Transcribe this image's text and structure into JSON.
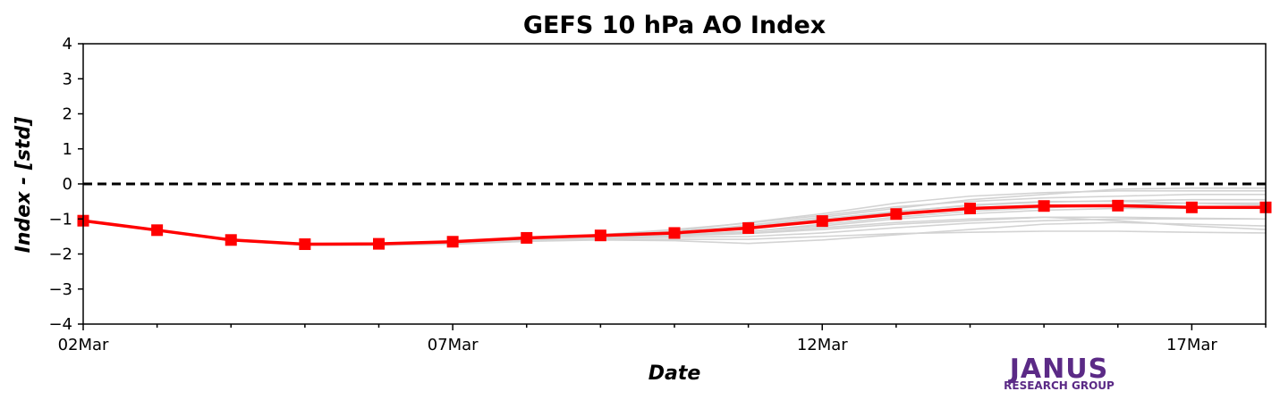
{
  "chart_data": {
    "type": "line",
    "title": "GEFS 10 hPa AO Index",
    "xlabel": "Date",
    "ylabel": "Index - [std]",
    "x_tick_labels": [
      "02Mar",
      "07Mar",
      "12Mar",
      "17Mar"
    ],
    "y_ticks": [
      -4,
      -3,
      -2,
      -1,
      0,
      1,
      2,
      3,
      4
    ],
    "ylim": [
      -4,
      4
    ],
    "xlim_days": [
      0,
      16
    ],
    "reference_line": {
      "y": 0,
      "style": "dashed",
      "color": "#000000"
    },
    "mean_series": {
      "color": "#ff0000",
      "marker": "square",
      "x_days": [
        0,
        1,
        2,
        3,
        4,
        5,
        6,
        7,
        8,
        9,
        10,
        11,
        12,
        13,
        14,
        15,
        16
      ],
      "values": [
        -1.05,
        -1.32,
        -1.6,
        -1.72,
        -1.71,
        -1.65,
        -1.54,
        -1.47,
        -1.4,
        -1.26,
        -1.06,
        -0.86,
        -0.7,
        -0.63,
        -0.62,
        -0.67,
        -0.67
      ]
    },
    "ensemble_color": "#d3d3d3",
    "ensemble_x_days": [
      0,
      1,
      2,
      3,
      4,
      5,
      6,
      7,
      8,
      9,
      10,
      11,
      12,
      13,
      14,
      15,
      16
    ],
    "ensemble_members": [
      [
        -1.05,
        -1.32,
        -1.6,
        -1.72,
        -1.71,
        -1.65,
        -1.54,
        -1.47,
        -1.35,
        -1.1,
        -0.85,
        -0.55,
        -0.35,
        -0.25,
        -0.2,
        -0.2,
        -0.2
      ],
      [
        -1.05,
        -1.32,
        -1.6,
        -1.72,
        -1.71,
        -1.65,
        -1.54,
        -1.47,
        -1.38,
        -1.18,
        -0.95,
        -0.7,
        -0.45,
        -0.3,
        -0.15,
        -0.12,
        -0.12
      ],
      [
        -1.05,
        -1.32,
        -1.6,
        -1.72,
        -1.71,
        -1.65,
        -1.54,
        -1.45,
        -1.3,
        -1.12,
        -0.9,
        -0.65,
        -0.5,
        -0.4,
        -0.35,
        -0.3,
        -0.3
      ],
      [
        -1.06,
        -1.33,
        -1.61,
        -1.73,
        -1.73,
        -1.68,
        -1.58,
        -1.52,
        -1.48,
        -1.42,
        -1.3,
        -1.15,
        -1.05,
        -0.95,
        -0.95,
        -0.98,
        -1.0
      ],
      [
        -1.06,
        -1.33,
        -1.61,
        -1.74,
        -1.74,
        -1.7,
        -1.62,
        -1.58,
        -1.58,
        -1.58,
        -1.5,
        -1.42,
        -1.38,
        -1.35,
        -1.35,
        -1.38,
        -1.4
      ],
      [
        -1.05,
        -1.32,
        -1.6,
        -1.73,
        -1.72,
        -1.66,
        -1.56,
        -1.5,
        -1.45,
        -1.35,
        -1.2,
        -1.0,
        -0.85,
        -0.75,
        -0.7,
        -0.7,
        -0.7
      ],
      [
        -1.05,
        -1.32,
        -1.6,
        -1.73,
        -1.72,
        -1.67,
        -1.58,
        -1.52,
        -1.48,
        -1.4,
        -1.25,
        -1.1,
        -1.0,
        -0.95,
        -1.05,
        -1.2,
        -1.3
      ],
      [
        -1.06,
        -1.34,
        -1.62,
        -1.75,
        -1.75,
        -1.72,
        -1.64,
        -1.6,
        -1.62,
        -1.7,
        -1.6,
        -1.45,
        -1.3,
        -1.15,
        -1.1,
        -1.15,
        -1.2
      ],
      [
        -1.05,
        -1.32,
        -1.6,
        -1.72,
        -1.71,
        -1.65,
        -1.55,
        -1.48,
        -1.42,
        -1.28,
        -1.05,
        -0.8,
        -0.6,
        -0.5,
        -0.5,
        -0.55,
        -0.6
      ],
      [
        -1.05,
        -1.32,
        -1.6,
        -1.72,
        -1.72,
        -1.67,
        -1.57,
        -1.51,
        -1.46,
        -1.36,
        -1.15,
        -0.95,
        -0.78,
        -0.68,
        -0.6,
        -0.55,
        -0.55
      ],
      [
        -1.05,
        -1.32,
        -1.6,
        -1.72,
        -1.71,
        -1.64,
        -1.53,
        -1.46,
        -1.38,
        -1.22,
        -1.0,
        -0.78,
        -0.62,
        -0.52,
        -0.48,
        -0.45,
        -0.45
      ],
      [
        -1.05,
        -1.32,
        -1.61,
        -1.73,
        -1.73,
        -1.69,
        -1.6,
        -1.55,
        -1.52,
        -1.5,
        -1.4,
        -1.25,
        -1.12,
        -1.05,
        -1.0,
        -1.0,
        -1.0
      ]
    ]
  },
  "logo": {
    "main": "JANUS",
    "sub": "RESEARCH GROUP"
  }
}
